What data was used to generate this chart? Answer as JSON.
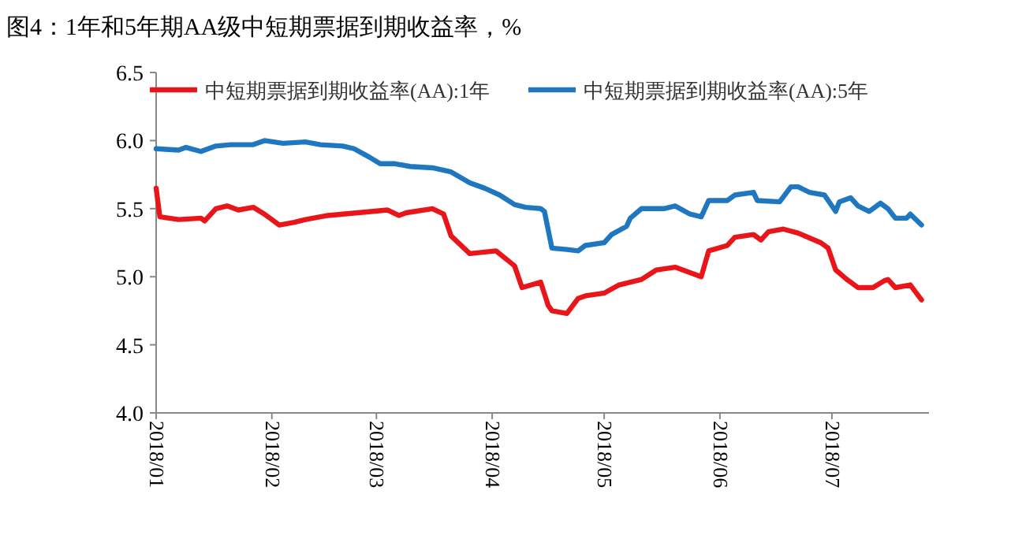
{
  "chart_data": {
    "type": "line",
    "title": "图4：1年和5年期AA级中短期票据到期收益率，%",
    "xlim": [
      "2018-01-01",
      "2018-07-27"
    ],
    "xticks": [
      {
        "value": "2018-01-01",
        "label": "2018/01"
      },
      {
        "value": "2018-02-01",
        "label": "2018/02"
      },
      {
        "value": "2018-03-01",
        "label": "2018/03"
      },
      {
        "value": "2018-04-01",
        "label": "2018/04"
      },
      {
        "value": "2018-05-01",
        "label": "2018/05"
      },
      {
        "value": "2018-06-01",
        "label": "2018/06"
      },
      {
        "value": "2018-07-01",
        "label": "2018/07"
      }
    ],
    "ylim": [
      4,
      6.5
    ],
    "yticks": [
      {
        "value": 4,
        "label": "4.0"
      },
      {
        "value": 4.5,
        "label": "4.5"
      },
      {
        "value": 5,
        "label": "5.0"
      },
      {
        "value": 5.5,
        "label": "5.5"
      },
      {
        "value": 6,
        "label": "6.0"
      },
      {
        "value": 6.5,
        "label": "6.5"
      }
    ],
    "legend": "top",
    "grid": false,
    "line_style": "solid",
    "series": [
      {
        "name": "中短期票据到期收益率(AA):1年",
        "color": "#e8161b",
        "x": [
          "2018-01-01",
          "2018-01-02",
          "2018-01-07",
          "2018-01-13",
          "2018-01-14",
          "2018-01-17",
          "2018-01-20",
          "2018-01-23",
          "2018-01-27",
          "2018-01-30",
          "2018-02-03",
          "2018-02-07",
          "2018-02-10",
          "2018-02-16",
          "2018-02-24",
          "2018-03-04",
          "2018-03-07",
          "2018-03-09",
          "2018-03-16",
          "2018-03-19",
          "2018-03-21",
          "2018-03-26",
          "2018-04-02",
          "2018-04-07",
          "2018-04-09",
          "2018-04-14",
          "2018-04-16",
          "2018-04-17",
          "2018-04-21",
          "2018-04-24",
          "2018-04-26",
          "2018-05-01",
          "2018-05-05",
          "2018-05-11",
          "2018-05-15",
          "2018-05-20",
          "2018-05-25",
          "2018-05-27",
          "2018-05-29",
          "2018-06-03",
          "2018-06-05",
          "2018-06-10",
          "2018-06-12",
          "2018-06-14",
          "2018-06-18",
          "2018-06-22",
          "2018-06-28",
          "2018-06-30",
          "2018-07-02",
          "2018-07-05",
          "2018-07-08",
          "2018-07-12",
          "2018-07-15",
          "2018-07-16",
          "2018-07-18",
          "2018-07-22",
          "2018-07-25"
        ],
        "values": [
          5.65,
          5.44,
          5.42,
          5.43,
          5.41,
          5.5,
          5.52,
          5.49,
          5.51,
          5.46,
          5.38,
          5.4,
          5.42,
          5.45,
          5.47,
          5.49,
          5.45,
          5.47,
          5.5,
          5.46,
          5.3,
          5.17,
          5.19,
          5.08,
          4.92,
          4.96,
          4.79,
          4.75,
          4.73,
          4.84,
          4.86,
          4.88,
          4.94,
          4.98,
          5.05,
          5.07,
          5.02,
          5.0,
          5.19,
          5.23,
          5.29,
          5.31,
          5.27,
          5.33,
          5.35,
          5.32,
          5.25,
          5.21,
          5.05,
          4.98,
          4.92,
          4.92,
          4.97,
          4.98,
          4.92,
          4.94,
          4.83
        ]
      },
      {
        "name": "中短期票据到期收益率(AA):5年",
        "color": "#1f77c0",
        "x": [
          "2018-01-01",
          "2018-01-07",
          "2018-01-09",
          "2018-01-13",
          "2018-01-17",
          "2018-01-21",
          "2018-01-27",
          "2018-01-30",
          "2018-02-04",
          "2018-02-10",
          "2018-02-14",
          "2018-02-20",
          "2018-02-23",
          "2018-02-27",
          "2018-03-02",
          "2018-03-06",
          "2018-03-10",
          "2018-03-16",
          "2018-03-21",
          "2018-03-26",
          "2018-03-30",
          "2018-04-03",
          "2018-04-07",
          "2018-04-10",
          "2018-04-14",
          "2018-04-15",
          "2018-04-17",
          "2018-04-21",
          "2018-04-24",
          "2018-04-26",
          "2018-05-01",
          "2018-05-03",
          "2018-05-07",
          "2018-05-08",
          "2018-05-11",
          "2018-05-17",
          "2018-05-20",
          "2018-05-24",
          "2018-05-27",
          "2018-05-29",
          "2018-06-03",
          "2018-06-05",
          "2018-06-10",
          "2018-06-11",
          "2018-06-17",
          "2018-06-20",
          "2018-06-22",
          "2018-06-25",
          "2018-06-29",
          "2018-07-02",
          "2018-07-03",
          "2018-07-06",
          "2018-07-08",
          "2018-07-11",
          "2018-07-14",
          "2018-07-16",
          "2018-07-18",
          "2018-07-21",
          "2018-07-22",
          "2018-07-25"
        ],
        "values": [
          5.94,
          5.93,
          5.95,
          5.92,
          5.96,
          5.97,
          5.97,
          6.0,
          5.98,
          5.99,
          5.97,
          5.96,
          5.94,
          5.88,
          5.83,
          5.83,
          5.81,
          5.8,
          5.77,
          5.69,
          5.65,
          5.6,
          5.53,
          5.51,
          5.5,
          5.48,
          5.21,
          5.2,
          5.19,
          5.23,
          5.25,
          5.31,
          5.37,
          5.43,
          5.5,
          5.5,
          5.52,
          5.46,
          5.44,
          5.56,
          5.56,
          5.6,
          5.62,
          5.56,
          5.55,
          5.66,
          5.66,
          5.62,
          5.6,
          5.48,
          5.55,
          5.58,
          5.52,
          5.48,
          5.54,
          5.5,
          5.43,
          5.43,
          5.46,
          5.38
        ]
      }
    ]
  }
}
